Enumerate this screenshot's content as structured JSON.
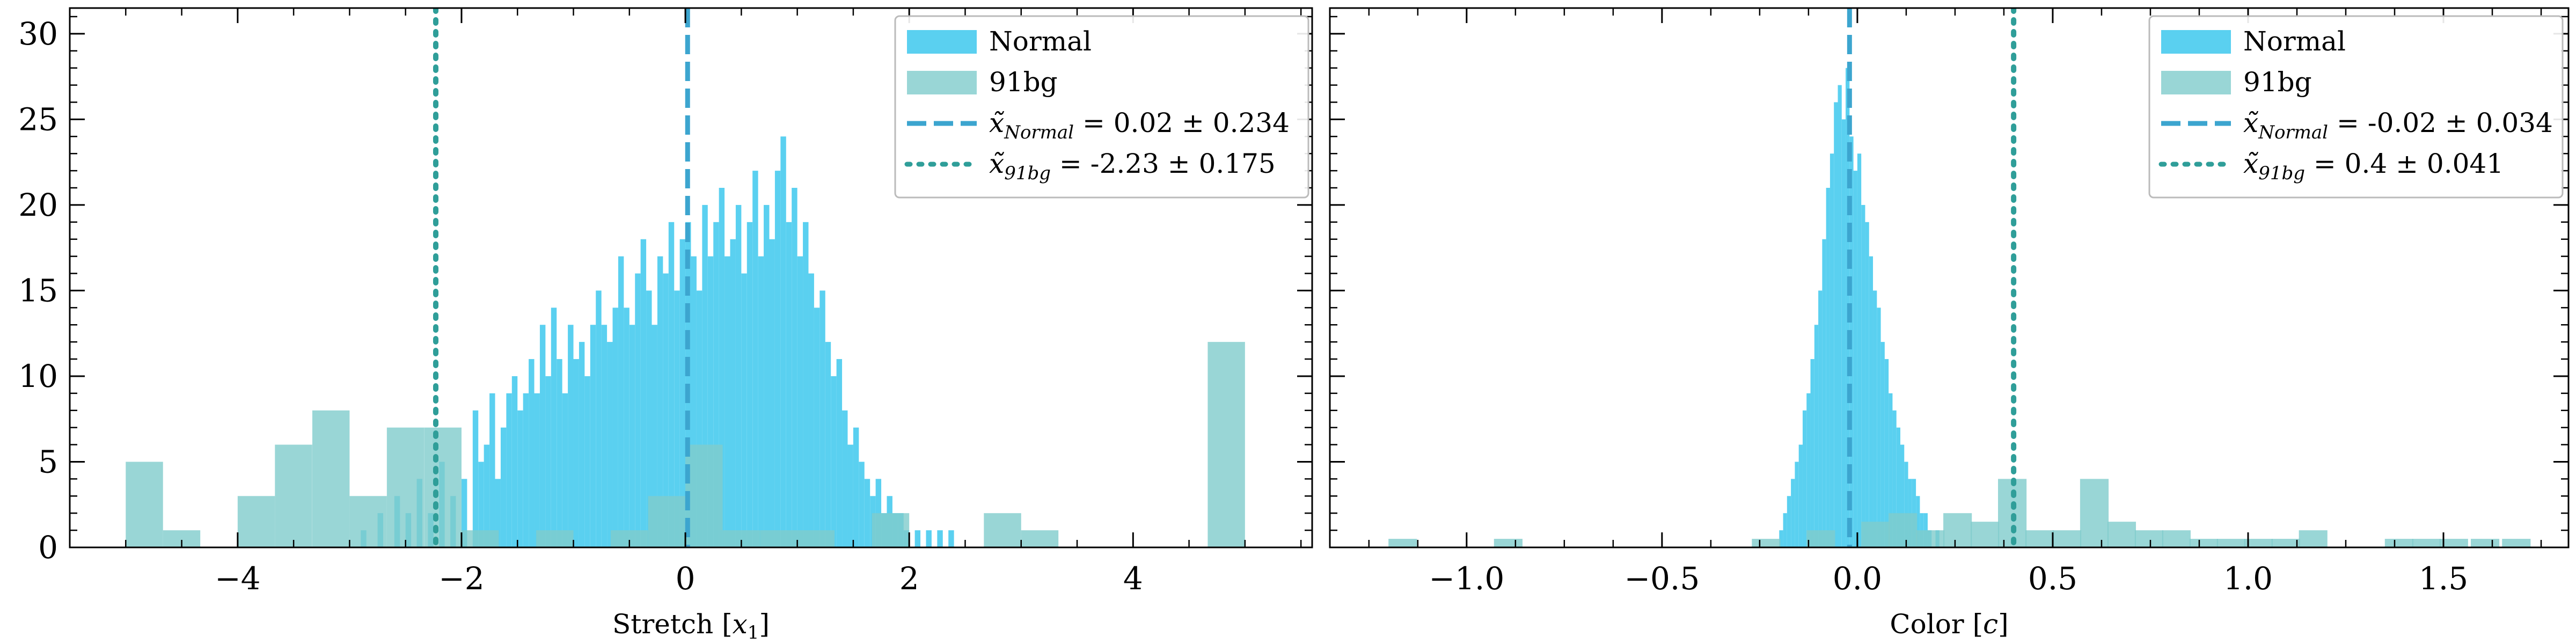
{
  "chart_data": [
    {
      "type": "histogram",
      "xlabel_main": "Stretch [",
      "xlabel_sym": "x",
      "xlabel_sub": "1",
      "xlabel_end": "]",
      "xlim": [
        -5.5,
        5.6
      ],
      "ylim": [
        0,
        31.5
      ],
      "xticks": [
        -4,
        -2,
        0,
        2,
        4
      ],
      "xtick_labels": [
        "−4",
        "−2",
        "0",
        "2",
        "4"
      ],
      "yticks": [
        0,
        5,
        10,
        15,
        20,
        25,
        30
      ],
      "ytick_labels": [
        "0",
        "5",
        "10",
        "15",
        "20",
        "25",
        "30"
      ],
      "legend_position": "top-right",
      "series": [
        {
          "name": "Normal",
          "color": "#5ad0f0",
          "bin_width": 0.05,
          "bins": [
            [
              -2.9,
              1
            ],
            [
              -2.75,
              2
            ],
            [
              -2.6,
              3
            ],
            [
              -2.5,
              2
            ],
            [
              -2.4,
              4
            ],
            [
              -2.3,
              2
            ],
            [
              -2.2,
              5
            ],
            [
              -2.1,
              3
            ],
            [
              -2.0,
              4
            ],
            [
              -1.9,
              8
            ],
            [
              -1.85,
              5
            ],
            [
              -1.8,
              6
            ],
            [
              -1.75,
              9
            ],
            [
              -1.7,
              4
            ],
            [
              -1.65,
              7
            ],
            [
              -1.6,
              9
            ],
            [
              -1.55,
              10
            ],
            [
              -1.5,
              8
            ],
            [
              -1.45,
              9
            ],
            [
              -1.4,
              11
            ],
            [
              -1.35,
              9
            ],
            [
              -1.3,
              13
            ],
            [
              -1.25,
              10
            ],
            [
              -1.2,
              14
            ],
            [
              -1.15,
              11
            ],
            [
              -1.1,
              9
            ],
            [
              -1.05,
              13
            ],
            [
              -1.0,
              11
            ],
            [
              -0.95,
              12
            ],
            [
              -0.9,
              10
            ],
            [
              -0.85,
              13
            ],
            [
              -0.8,
              15
            ],
            [
              -0.75,
              13
            ],
            [
              -0.7,
              12
            ],
            [
              -0.65,
              14
            ],
            [
              -0.6,
              17
            ],
            [
              -0.55,
              14
            ],
            [
              -0.5,
              13
            ],
            [
              -0.45,
              16
            ],
            [
              -0.4,
              18
            ],
            [
              -0.35,
              15
            ],
            [
              -0.3,
              13
            ],
            [
              -0.25,
              17
            ],
            [
              -0.2,
              16
            ],
            [
              -0.15,
              19
            ],
            [
              -0.1,
              15
            ],
            [
              -0.05,
              18
            ],
            [
              0.0,
              19
            ],
            [
              0.05,
              17
            ],
            [
              0.1,
              15
            ],
            [
              0.15,
              20
            ],
            [
              0.2,
              17
            ],
            [
              0.25,
              19
            ],
            [
              0.3,
              21
            ],
            [
              0.35,
              17
            ],
            [
              0.4,
              18
            ],
            [
              0.45,
              20
            ],
            [
              0.5,
              16
            ],
            [
              0.55,
              19
            ],
            [
              0.6,
              22
            ],
            [
              0.65,
              17
            ],
            [
              0.7,
              20
            ],
            [
              0.75,
              18
            ],
            [
              0.8,
              22
            ],
            [
              0.85,
              24
            ],
            [
              0.9,
              19
            ],
            [
              0.95,
              21
            ],
            [
              1.0,
              17
            ],
            [
              1.05,
              19
            ],
            [
              1.1,
              16
            ],
            [
              1.15,
              14
            ],
            [
              1.2,
              15
            ],
            [
              1.25,
              12
            ],
            [
              1.3,
              10
            ],
            [
              1.35,
              11
            ],
            [
              1.4,
              8
            ],
            [
              1.45,
              6
            ],
            [
              1.5,
              7
            ],
            [
              1.55,
              5
            ],
            [
              1.6,
              4
            ],
            [
              1.65,
              3
            ],
            [
              1.7,
              4
            ],
            [
              1.75,
              2
            ],
            [
              1.8,
              3
            ],
            [
              1.85,
              2
            ],
            [
              1.9,
              2
            ],
            [
              1.95,
              1
            ],
            [
              2.05,
              1
            ],
            [
              2.15,
              1
            ],
            [
              2.25,
              1
            ],
            [
              2.35,
              1
            ]
          ]
        },
        {
          "name": "91bg",
          "color": "#80cccc",
          "bin_width": 0.333,
          "bins": [
            [
              -5.0,
              5
            ],
            [
              -4.667,
              1
            ],
            [
              -4.0,
              3
            ],
            [
              -3.667,
              6
            ],
            [
              -3.333,
              8
            ],
            [
              -3.0,
              3
            ],
            [
              -2.667,
              7
            ],
            [
              -2.333,
              7
            ],
            [
              -2.0,
              1
            ],
            [
              -1.333,
              1
            ],
            [
              -0.667,
              1
            ],
            [
              -0.333,
              3
            ],
            [
              0.0,
              6
            ],
            [
              0.333,
              1
            ],
            [
              0.667,
              1
            ],
            [
              1.0,
              1
            ],
            [
              1.667,
              2
            ],
            [
              2.667,
              2
            ],
            [
              3.0,
              1
            ],
            [
              4.667,
              12
            ]
          ]
        }
      ],
      "lines": [
        {
          "style": "dashed",
          "color": "#3ca5cf",
          "x": 0.02,
          "legend_sym": "x̃",
          "legend_sub": "Normal",
          "legend_text": " = 0.02 ± 0.234"
        },
        {
          "style": "dotted",
          "color": "#2f9e99",
          "x": -2.23,
          "legend_sym": "x̃",
          "legend_sub": "91bg",
          "legend_text": " = -2.23 ± 0.175"
        }
      ]
    },
    {
      "type": "histogram",
      "xlabel_main": "Color [",
      "xlabel_sym": "c",
      "xlabel_sub": "",
      "xlabel_end": "]",
      "xlim": [
        -1.35,
        1.82
      ],
      "ylim": [
        0,
        31.5
      ],
      "xticks": [
        -1.0,
        -0.5,
        0.0,
        0.5,
        1.0,
        1.5
      ],
      "xtick_labels": [
        "−1.0",
        "−0.5",
        "0.0",
        "0.5",
        "1.0",
        "1.5"
      ],
      "yticks": [
        0,
        5,
        10,
        15,
        20,
        25,
        30
      ],
      "ytick_labels": [
        "",
        "",
        "",
        "",
        "",
        "",
        ""
      ],
      "legend_position": "top-right",
      "series": [
        {
          "name": "Normal",
          "color": "#5ad0f0",
          "bin_width": 0.01,
          "bins": [
            [
              -0.2,
              1
            ],
            [
              -0.19,
              2
            ],
            [
              -0.18,
              3
            ],
            [
              -0.17,
              4
            ],
            [
              -0.16,
              5
            ],
            [
              -0.15,
              6
            ],
            [
              -0.14,
              8
            ],
            [
              -0.13,
              9
            ],
            [
              -0.12,
              11
            ],
            [
              -0.11,
              13
            ],
            [
              -0.1,
              15
            ],
            [
              -0.09,
              18
            ],
            [
              -0.08,
              21
            ],
            [
              -0.07,
              23
            ],
            [
              -0.06,
              26
            ],
            [
              -0.05,
              27
            ],
            [
              -0.04,
              25
            ],
            [
              -0.03,
              28
            ],
            [
              -0.02,
              24
            ],
            [
              -0.01,
              22
            ],
            [
              0.0,
              23
            ],
            [
              0.01,
              20
            ],
            [
              0.02,
              19
            ],
            [
              0.03,
              17
            ],
            [
              0.04,
              15
            ],
            [
              0.05,
              14
            ],
            [
              0.06,
              12
            ],
            [
              0.07,
              11
            ],
            [
              0.08,
              9
            ],
            [
              0.09,
              8
            ],
            [
              0.1,
              7
            ],
            [
              0.11,
              6
            ],
            [
              0.12,
              5
            ],
            [
              0.13,
              4
            ],
            [
              0.14,
              4
            ],
            [
              0.15,
              3
            ],
            [
              0.16,
              2
            ],
            [
              0.17,
              2
            ],
            [
              0.18,
              1
            ],
            [
              0.2,
              1
            ]
          ]
        },
        {
          "name": "91bg",
          "color": "#80cccc",
          "bin_width": 0.073,
          "bins": [
            [
              -1.2,
              0.5
            ],
            [
              -0.93,
              0.5
            ],
            [
              -0.27,
              0.5
            ],
            [
              -0.13,
              1
            ],
            [
              0.01,
              1.5
            ],
            [
              0.08,
              2
            ],
            [
              0.15,
              1
            ],
            [
              0.22,
              2
            ],
            [
              0.29,
              1.5
            ],
            [
              0.36,
              4
            ],
            [
              0.43,
              1
            ],
            [
              0.5,
              1
            ],
            [
              0.57,
              4
            ],
            [
              0.64,
              1.5
            ],
            [
              0.71,
              1
            ],
            [
              0.78,
              1
            ],
            [
              0.85,
              0.5
            ],
            [
              0.92,
              0.5
            ],
            [
              0.99,
              0.5
            ],
            [
              1.06,
              0.5
            ],
            [
              1.13,
              1
            ],
            [
              1.35,
              0.5
            ],
            [
              1.42,
              0.5
            ],
            [
              1.49,
              0.5
            ],
            [
              1.57,
              0.5
            ],
            [
              1.65,
              0.5
            ]
          ]
        }
      ],
      "lines": [
        {
          "style": "dashed",
          "color": "#3ca5cf",
          "x": -0.02,
          "legend_sym": "x̃",
          "legend_sub": "Normal",
          "legend_text": " = -0.02 ± 0.034"
        },
        {
          "style": "dotted",
          "color": "#2f9e99",
          "x": 0.4,
          "legend_sym": "x̃",
          "legend_sub": "91bg",
          "legend_text": " = 0.4 ± 0.041"
        }
      ]
    }
  ]
}
